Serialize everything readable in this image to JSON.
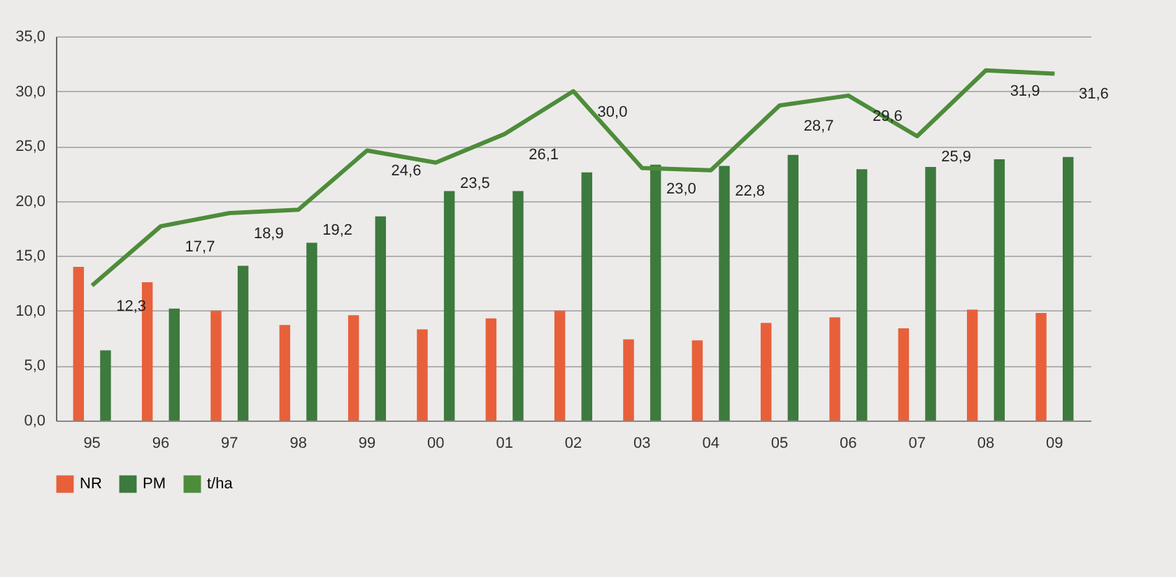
{
  "chart_data": {
    "type": "bar",
    "categories": [
      "95",
      "96",
      "97",
      "98",
      "99",
      "00",
      "01",
      "02",
      "03",
      "04",
      "05",
      "06",
      "07",
      "08",
      "09"
    ],
    "series": [
      {
        "name": "NR",
        "color": "#e8603a",
        "values": [
          14.0,
          12.6,
          10.0,
          8.7,
          9.6,
          8.3,
          9.3,
          10.0,
          7.4,
          7.3,
          8.9,
          9.4,
          8.4,
          10.1,
          9.8
        ]
      },
      {
        "name": "PM",
        "color": "#3d7a3d",
        "values": [
          6.4,
          10.2,
          14.1,
          16.2,
          18.6,
          20.9,
          20.9,
          22.6,
          23.3,
          23.2,
          24.2,
          22.9,
          23.1,
          23.8,
          24.0
        ]
      },
      {
        "name": "t/ha",
        "type": "line",
        "color": "#4e8c3a",
        "values": [
          12.3,
          17.7,
          18.9,
          19.2,
          24.6,
          23.5,
          26.1,
          30.0,
          23.0,
          22.8,
          28.7,
          29.6,
          25.9,
          31.9,
          31.6
        ],
        "value_labels": [
          "12,3",
          "17,7",
          "18,9",
          "19,2",
          "24,6",
          "23,5",
          "26,1",
          "30,0",
          "23,0",
          "22,8",
          "28,7",
          "29,6",
          "25,9",
          "31,9",
          "31,6"
        ]
      }
    ],
    "ylim": [
      0,
      35
    ],
    "yticks": [
      {
        "value": 0,
        "label": "0,0"
      },
      {
        "value": 5,
        "label": "5,0"
      },
      {
        "value": 10,
        "label": "10,0"
      },
      {
        "value": 15,
        "label": "15,0"
      },
      {
        "value": 20,
        "label": "20,0"
      },
      {
        "value": 25,
        "label": "25,0"
      },
      {
        "value": 30,
        "label": "30,0"
      },
      {
        "value": 35,
        "label": "35,0"
      }
    ],
    "grid": "y",
    "legend": "bottom",
    "marker": "none"
  }
}
